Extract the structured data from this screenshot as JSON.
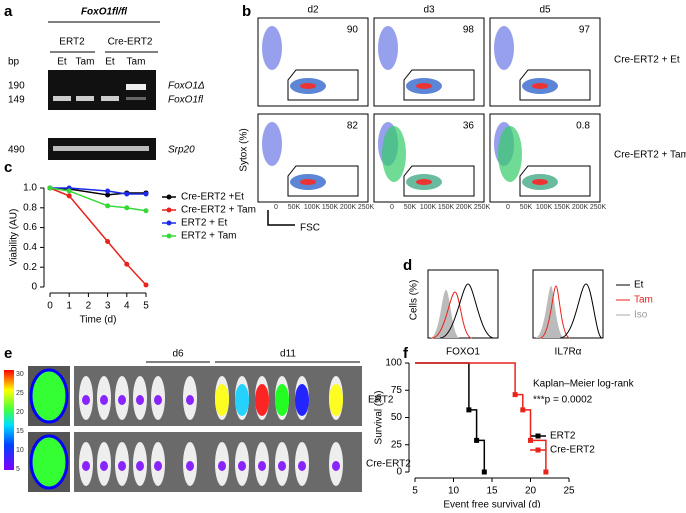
{
  "panel_labels": [
    "a",
    "b",
    "c",
    "d",
    "e",
    "f"
  ],
  "gel": {
    "genotype": "FoxO1fl/fl",
    "groups": [
      "ERT2",
      "Cre-ERT2"
    ],
    "lanes": [
      "Et",
      "Tam",
      "Et",
      "Tam"
    ],
    "unit": "bp",
    "sizes": [
      "190",
      "149",
      "490"
    ],
    "bands": [
      "FoxO1Δ",
      "FoxO1fl",
      "Srp20"
    ]
  },
  "flow": {
    "days": [
      "d2",
      "d3",
      "d5"
    ],
    "rows": [
      "Cre-ERT2 + Et",
      "Cre-ERT2 + Tam"
    ],
    "percentages": [
      [
        "90",
        "98",
        "97"
      ],
      [
        "82",
        "36",
        "0.8"
      ]
    ],
    "x_label": "FSC",
    "y_label": "Sytox (%)",
    "x_ticks": [
      "0",
      "50K",
      "100K",
      "150K",
      "200K",
      "250K"
    ]
  },
  "histograms": {
    "y_label": "Cells (%)",
    "x_labels": [
      "FOXO1",
      "IL7Rα"
    ],
    "legend": [
      "Et",
      "Tam",
      "Iso"
    ]
  },
  "imaging": {
    "days": [
      "d6",
      "d11"
    ],
    "rows": [
      "ERT2",
      "Cre-ERT2"
    ],
    "scale_ticks": [
      "30",
      "25",
      "20",
      "15",
      "10",
      "5"
    ]
  },
  "chart_data": [
    {
      "type": "line",
      "y_label": "Viability (AU)",
      "x_label": "Time (d)",
      "x": [
        0,
        1,
        3,
        4,
        5
      ],
      "xlim": [
        0,
        5
      ],
      "xticks": [
        0,
        1,
        2,
        3,
        4,
        5
      ],
      "ylim": [
        0,
        1
      ],
      "yticks": [
        0,
        0.2,
        0.4,
        0.6,
        0.8,
        {
          "value": 1,
          "label": "1.0"
        }
      ],
      "series": [
        {
          "name": "Cre-ERT2 +Et",
          "color": "#000000",
          "values": [
            1,
            0.99,
            0.93,
            0.95,
            0.95
          ]
        },
        {
          "name": "Cre-ERT2 + Tam",
          "color": "#e8231c",
          "values": [
            1,
            0.92,
            0.46,
            0.23,
            0.02
          ]
        },
        {
          "name": "ERT2 + Et",
          "color": "#1c2bea",
          "values": [
            1,
            1,
            0.97,
            0.94,
            0.94
          ]
        },
        {
          "name": "ERT2 + Tam",
          "color": "#35d935",
          "values": [
            1,
            0.97,
            0.82,
            0.8,
            0.77
          ]
        }
      ]
    },
    {
      "type": "step",
      "y_label": "Survival (%)",
      "x_label": "Event free survival (d)",
      "annotations": [
        "Kaplan–Meier log-rank",
        "***p = 0.0002"
      ],
      "xlim": [
        5,
        25
      ],
      "xticks": [
        5,
        10,
        15,
        20,
        25
      ],
      "ylim": [
        0,
        100
      ],
      "yticks": [
        0,
        25,
        50,
        75,
        100
      ],
      "series": [
        {
          "name": "ERT2",
          "color": "#000000",
          "x": [
            5,
            12,
            13,
            14
          ],
          "values": [
            100,
            57,
            29,
            0
          ]
        },
        {
          "name": "Cre-ERT2",
          "color": "#e8231c",
          "x": [
            5,
            18,
            19,
            20,
            22
          ],
          "values": [
            100,
            71,
            57,
            29,
            0
          ]
        }
      ]
    }
  ]
}
